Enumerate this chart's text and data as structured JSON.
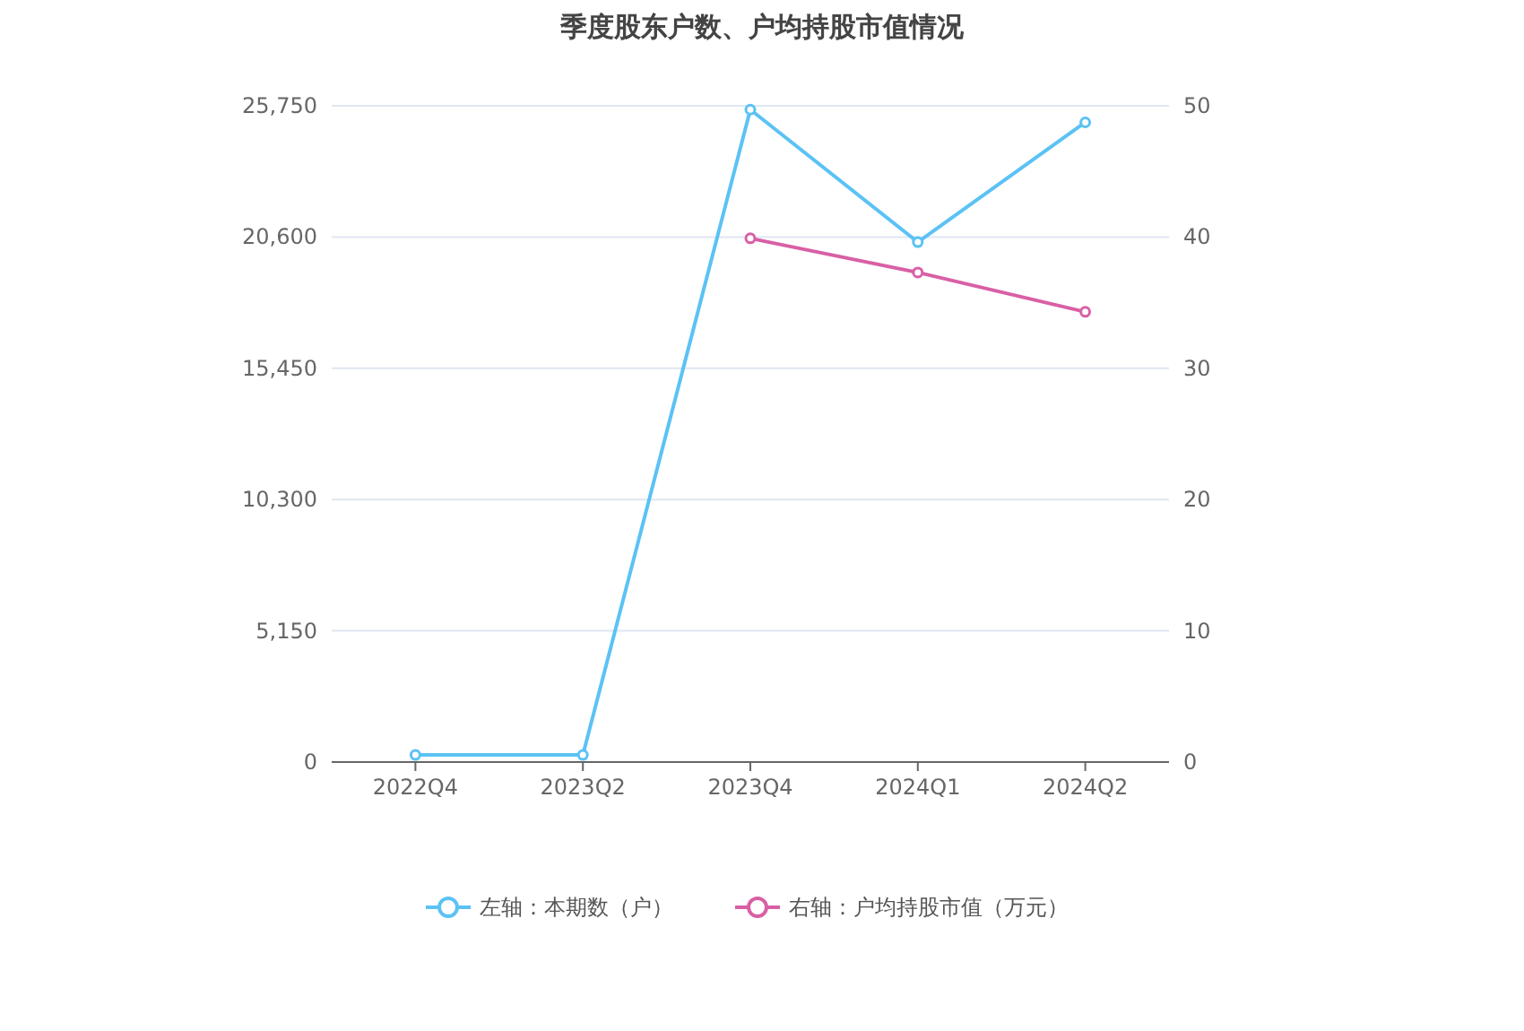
{
  "chart_data": {
    "type": "line",
    "title": "季度股东户数、户均持股市值情况",
    "categories": [
      "2022Q4",
      "2023Q2",
      "2023Q4",
      "2024Q1",
      "2024Q2"
    ],
    "series": [
      {
        "name": "左轴：本期数（户）",
        "color": "#5bc2f5",
        "values": [
          280,
          280,
          25600,
          20400,
          25100
        ]
      },
      {
        "name": "右轴：户均持股市值（万元）",
        "color": "#d95fa5",
        "axis": "y2",
        "values": [
          null,
          null,
          39.9,
          37.3,
          34.3
        ]
      }
    ],
    "ylim": [
      0,
      25750
    ],
    "yticks": [
      {
        "value": 0,
        "label": "0"
      },
      {
        "value": 5150,
        "label": "5,150"
      },
      {
        "value": 10300,
        "label": "10,300"
      },
      {
        "value": 15450,
        "label": "15,450"
      },
      {
        "value": 20600,
        "label": "20,600"
      },
      {
        "value": 25750,
        "label": "25,750"
      }
    ],
    "y2lim": [
      0,
      50
    ],
    "y2ticks": [
      0,
      10,
      20,
      30,
      40,
      50
    ],
    "grid": "y",
    "legend": "bottom",
    "marker": "circle",
    "line_style": "solid"
  }
}
